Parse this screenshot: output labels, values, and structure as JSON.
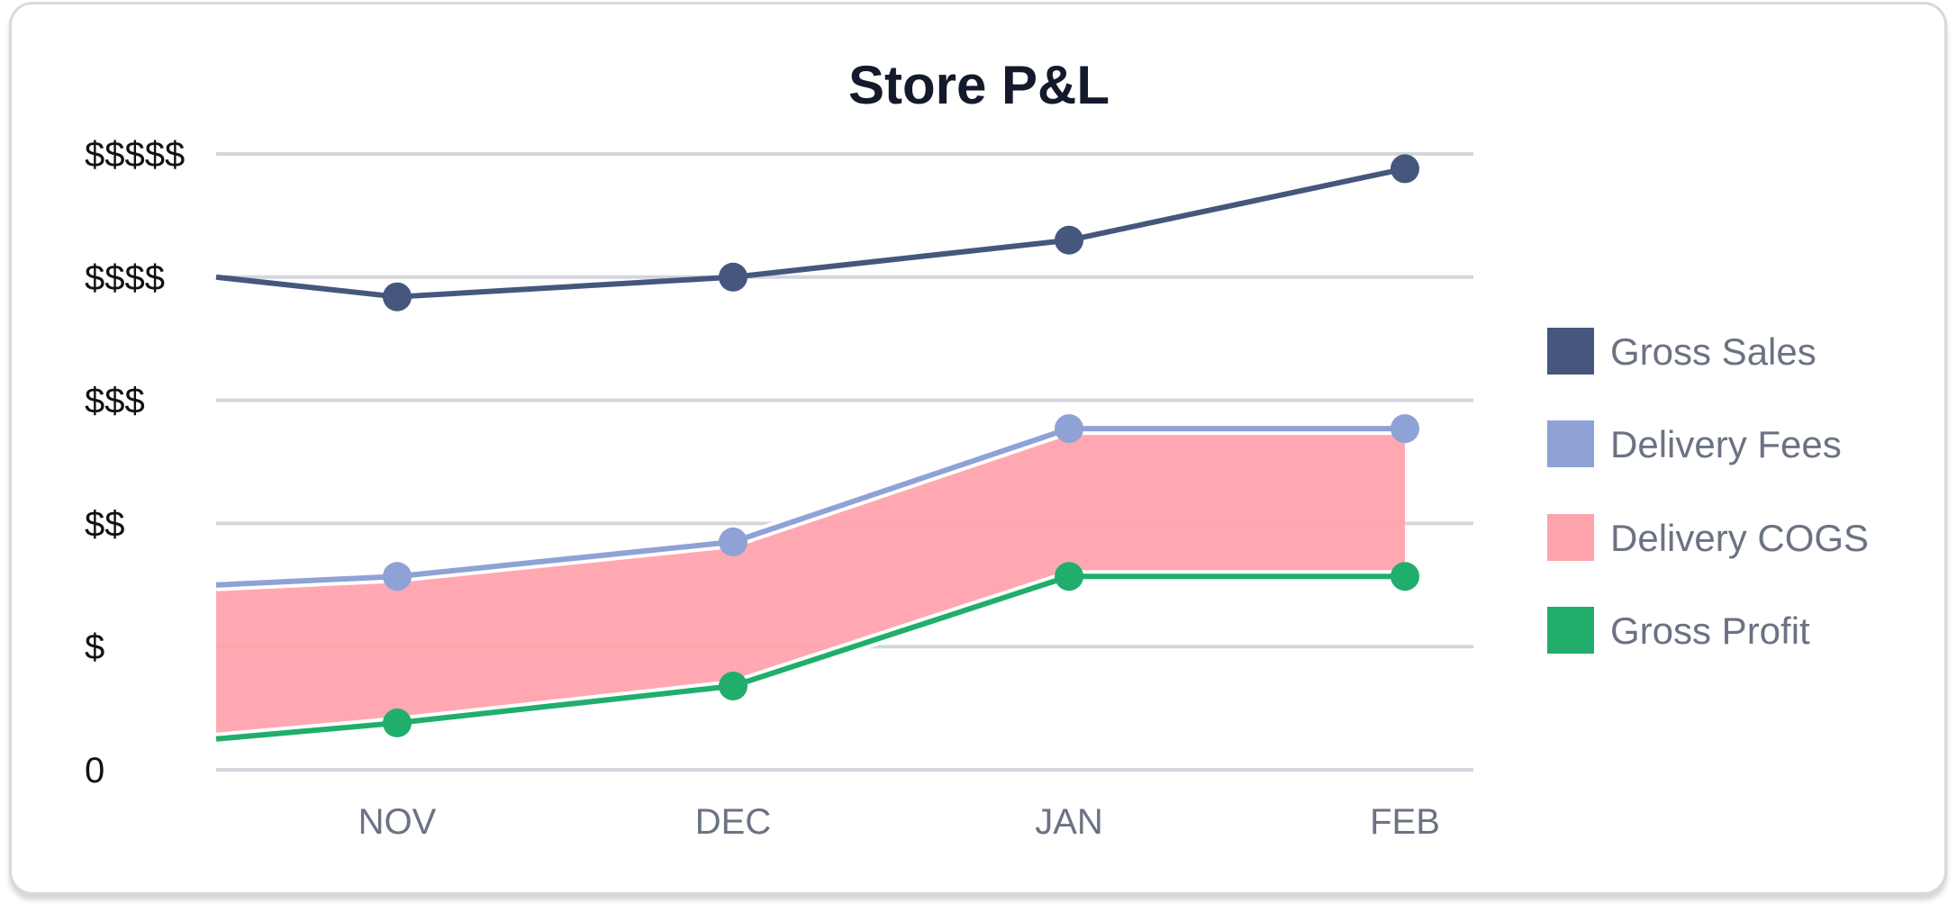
{
  "chart_data": {
    "type": "line",
    "title": "Store P&L",
    "xlabel": "",
    "ylabel": "",
    "categories": [
      "NOV",
      "DEC",
      "JAN",
      "FEB"
    ],
    "y_tick_labels": [
      "0",
      "$",
      "$$",
      "$$$",
      "$$$$",
      "$$$$$"
    ],
    "ylim": [
      0,
      5
    ],
    "grid": true,
    "legend_position": "right",
    "series": [
      {
        "name": "Gross Sales",
        "color": "#46577d",
        "values": [
          3.84,
          4.0,
          4.3,
          4.88
        ],
        "left_edge": 4.0
      },
      {
        "name": "Delivery Fees",
        "color": "#8fa2d6",
        "values": [
          1.57,
          1.85,
          2.77,
          2.77
        ],
        "left_edge": 1.5
      },
      {
        "name": "Delivery COGS",
        "color": "#ffa3ad",
        "type": "area",
        "upper": [
          1.57,
          1.85,
          2.77,
          2.77
        ],
        "lower": [
          0.38,
          0.68,
          1.57,
          1.57
        ],
        "left_upper": 1.5,
        "left_lower": 0.25
      },
      {
        "name": "Gross Profit",
        "color": "#21ae6c",
        "values": [
          0.38,
          0.68,
          1.57,
          1.57
        ],
        "left_edge": 0.25
      }
    ]
  }
}
